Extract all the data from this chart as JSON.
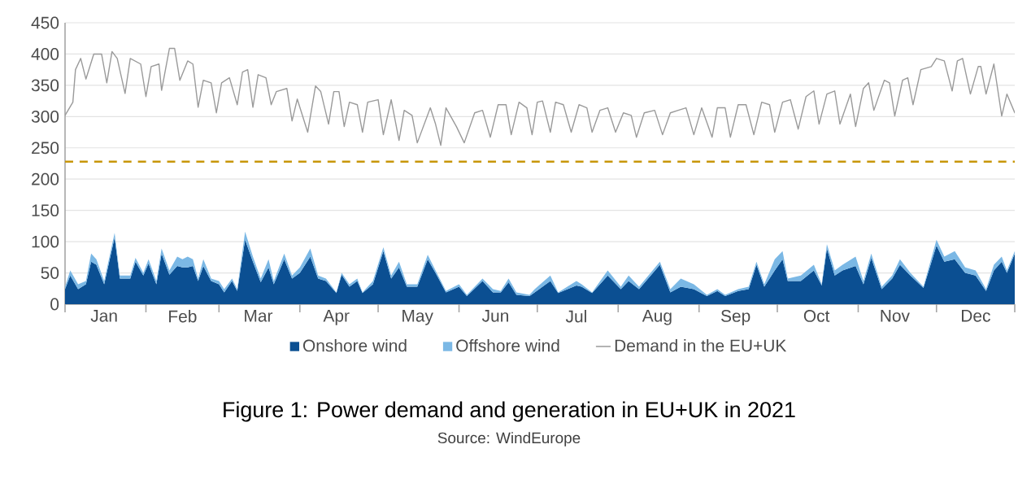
{
  "chart_data": {
    "type": "area",
    "stacked": true,
    "title": "Figure 1: Power demand and generation in EU+UK in 2021",
    "annotations": [
      "Source: WindEurope"
    ],
    "xlim": [
      "2021-01-01",
      "2021-12-31"
    ],
    "xticks": [
      {
        "value": "2021-01-16",
        "label": "Jan"
      },
      {
        "value": "2021-02-15",
        "label": "Feb"
      },
      {
        "value": "2021-03-16",
        "label": "Mar"
      },
      {
        "value": "2021-04-15",
        "label": "Apr"
      },
      {
        "value": "2021-05-16",
        "label": "May"
      },
      {
        "value": "2021-06-15",
        "label": "Jun"
      },
      {
        "value": "2021-07-16",
        "label": "Jul"
      },
      {
        "value": "2021-08-16",
        "label": "Aug"
      },
      {
        "value": "2021-09-15",
        "label": "Sep"
      },
      {
        "value": "2021-10-16",
        "label": "Oct"
      },
      {
        "value": "2021-11-15",
        "label": "Nov"
      },
      {
        "value": "2021-12-16",
        "label": "Dec"
      },
      {
        "value": "2021-01-01",
        "label": null
      },
      {
        "value": "2021-02-01",
        "label": null
      },
      {
        "value": "2021-03-01",
        "label": null
      },
      {
        "value": "2021-04-01",
        "label": null
      },
      {
        "value": "2021-05-01",
        "label": null
      },
      {
        "value": "2021-06-01",
        "label": null
      },
      {
        "value": "2021-07-01",
        "label": null
      },
      {
        "value": "2021-08-01",
        "label": null
      },
      {
        "value": "2021-09-01",
        "label": null
      },
      {
        "value": "2021-10-01",
        "label": null
      },
      {
        "value": "2021-11-01",
        "label": null
      },
      {
        "value": "2021-12-01",
        "label": null
      },
      {
        "value": "2021-12-31",
        "label": null
      }
    ],
    "ylim": [
      0,
      450
    ],
    "yticks": [
      0,
      50,
      100,
      150,
      200,
      250,
      300,
      350,
      400,
      450
    ],
    "grid": "y",
    "legend": "bottom",
    "ref_lines": [
      {
        "axis": "y",
        "value": 228,
        "color": "#c8960a",
        "line_style": "dashed"
      }
    ],
    "series": [
      {
        "name": "Onshore wind",
        "color": "#0b4f92",
        "x": [
          "2021-01-01",
          "2021-01-03",
          "2021-01-06",
          "2021-01-09",
          "2021-01-11",
          "2021-01-13",
          "2021-01-16",
          "2021-01-20",
          "2021-01-22",
          "2021-01-26",
          "2021-01-28",
          "2021-01-31",
          "2021-02-02",
          "2021-02-05",
          "2021-02-07",
          "2021-02-10",
          "2021-02-13",
          "2021-02-15",
          "2021-02-17",
          "2021-02-19",
          "2021-02-21",
          "2021-02-23",
          "2021-02-26",
          "2021-03-01",
          "2021-03-03",
          "2021-03-06",
          "2021-03-08",
          "2021-03-11",
          "2021-03-14",
          "2021-03-17",
          "2021-03-20",
          "2021-03-22",
          "2021-03-26",
          "2021-03-29",
          "2021-04-01",
          "2021-04-05",
          "2021-04-08",
          "2021-04-11",
          "2021-04-15",
          "2021-04-17",
          "2021-04-20",
          "2021-04-23",
          "2021-04-25",
          "2021-04-29",
          "2021-05-03",
          "2021-05-06",
          "2021-05-09",
          "2021-05-12",
          "2021-05-16",
          "2021-05-20",
          "2021-05-23",
          "2021-05-27",
          "2021-06-01",
          "2021-06-04",
          "2021-06-10",
          "2021-06-14",
          "2021-06-17",
          "2021-06-20",
          "2021-06-23",
          "2021-06-28",
          "2021-06-30",
          "2021-07-06",
          "2021-07-09",
          "2021-07-16",
          "2021-07-18",
          "2021-07-22",
          "2021-07-28",
          "2021-08-02",
          "2021-08-05",
          "2021-08-09",
          "2021-08-17",
          "2021-08-21",
          "2021-08-25",
          "2021-08-30",
          "2021-09-04",
          "2021-09-08",
          "2021-09-11",
          "2021-09-16",
          "2021-09-20",
          "2021-09-23",
          "2021-09-26",
          "2021-09-30",
          "2021-10-03",
          "2021-10-05",
          "2021-10-10",
          "2021-10-15",
          "2021-10-18",
          "2021-10-20",
          "2021-10-23",
          "2021-10-26",
          "2021-10-31",
          "2021-11-03",
          "2021-11-06",
          "2021-11-10",
          "2021-11-14",
          "2021-11-17",
          "2021-11-21",
          "2021-11-26",
          "2021-12-01",
          "2021-12-04",
          "2021-12-08",
          "2021-12-12",
          "2021-12-16",
          "2021-12-20",
          "2021-12-23",
          "2021-12-26",
          "2021-12-28",
          "2021-12-31"
        ],
        "values": [
          24,
          46,
          24,
          32,
          68,
          63,
          32,
          107,
          41,
          41,
          68,
          46,
          65,
          32,
          81,
          47,
          61,
          59,
          59,
          61,
          37,
          61,
          37,
          32,
          19,
          37,
          21,
          103,
          68,
          35,
          59,
          32,
          72,
          41,
          50,
          76,
          41,
          37,
          18,
          47,
          28,
          37,
          18,
          32,
          85,
          41,
          59,
          28,
          28,
          72,
          50,
          19,
          28,
          13,
          37,
          19,
          19,
          35,
          15,
          13,
          19,
          37,
          18,
          30,
          28,
          18,
          46,
          24,
          37,
          24,
          63,
          19,
          28,
          24,
          13,
          21,
          13,
          21,
          24,
          63,
          28,
          54,
          72,
          37,
          37,
          54,
          30,
          89,
          46,
          54,
          61,
          32,
          74,
          24,
          41,
          63,
          46,
          26,
          94,
          68,
          72,
          50,
          46,
          21,
          54,
          68,
          50,
          81
        ]
      },
      {
        "name": "Offshore wind",
        "color": "#7bb8e5",
        "x": [
          "2021-01-01",
          "2021-01-03",
          "2021-01-06",
          "2021-01-09",
          "2021-01-11",
          "2021-01-13",
          "2021-01-16",
          "2021-01-20",
          "2021-01-22",
          "2021-01-26",
          "2021-01-28",
          "2021-01-31",
          "2021-02-02",
          "2021-02-05",
          "2021-02-07",
          "2021-02-10",
          "2021-02-13",
          "2021-02-15",
          "2021-02-17",
          "2021-02-19",
          "2021-02-21",
          "2021-02-23",
          "2021-02-26",
          "2021-03-01",
          "2021-03-03",
          "2021-03-06",
          "2021-03-08",
          "2021-03-11",
          "2021-03-14",
          "2021-03-17",
          "2021-03-20",
          "2021-03-22",
          "2021-03-26",
          "2021-03-29",
          "2021-04-01",
          "2021-04-05",
          "2021-04-08",
          "2021-04-11",
          "2021-04-15",
          "2021-04-17",
          "2021-04-20",
          "2021-04-23",
          "2021-04-25",
          "2021-04-29",
          "2021-05-03",
          "2021-05-06",
          "2021-05-09",
          "2021-05-12",
          "2021-05-16",
          "2021-05-20",
          "2021-05-23",
          "2021-05-27",
          "2021-06-01",
          "2021-06-04",
          "2021-06-10",
          "2021-06-14",
          "2021-06-17",
          "2021-06-20",
          "2021-06-23",
          "2021-06-28",
          "2021-06-30",
          "2021-07-06",
          "2021-07-09",
          "2021-07-16",
          "2021-07-18",
          "2021-07-22",
          "2021-07-28",
          "2021-08-02",
          "2021-08-05",
          "2021-08-09",
          "2021-08-17",
          "2021-08-21",
          "2021-08-25",
          "2021-08-30",
          "2021-09-04",
          "2021-09-08",
          "2021-09-11",
          "2021-09-16",
          "2021-09-20",
          "2021-09-23",
          "2021-09-26",
          "2021-09-30",
          "2021-10-03",
          "2021-10-05",
          "2021-10-10",
          "2021-10-15",
          "2021-10-18",
          "2021-10-20",
          "2021-10-23",
          "2021-10-26",
          "2021-10-31",
          "2021-11-03",
          "2021-11-06",
          "2021-11-10",
          "2021-11-14",
          "2021-11-17",
          "2021-11-21",
          "2021-11-26",
          "2021-12-01",
          "2021-12-04",
          "2021-12-08",
          "2021-12-12",
          "2021-12-16",
          "2021-12-20",
          "2021-12-23",
          "2021-12-26",
          "2021-12-28",
          "2021-12-31"
        ],
        "values": [
          4,
          8,
          8,
          5,
          13,
          9,
          5,
          7,
          5,
          5,
          6,
          4,
          7,
          5,
          8,
          7,
          15,
          13,
          17,
          11,
          4,
          11,
          4,
          5,
          5,
          4,
          3,
          13,
          8,
          6,
          13,
          5,
          9,
          5,
          9,
          13,
          5,
          4,
          1,
          3,
          4,
          4,
          1,
          5,
          6,
          5,
          9,
          4,
          4,
          7,
          4,
          2,
          4,
          2,
          4,
          5,
          2,
          6,
          4,
          2,
          5,
          9,
          1,
          7,
          4,
          1,
          8,
          4,
          9,
          4,
          5,
          5,
          13,
          8,
          2,
          3,
          2,
          3,
          4,
          5,
          4,
          18,
          13,
          4,
          9,
          9,
          2,
          7,
          8,
          9,
          15,
          5,
          7,
          4,
          5,
          9,
          4,
          2,
          9,
          8,
          13,
          9,
          8,
          3,
          9,
          8,
          4,
          4
        ]
      },
      {
        "name": "Demand in the EU+UK",
        "type": "line",
        "color": "#9a9a9a",
        "x": [
          "2021-01-01",
          "2021-01-04",
          "2021-01-05",
          "2021-01-07",
          "2021-01-09",
          "2021-01-12",
          "2021-01-15",
          "2021-01-17",
          "2021-01-19",
          "2021-01-21",
          "2021-01-24",
          "2021-01-26",
          "2021-01-30",
          "2021-02-01",
          "2021-02-03",
          "2021-02-06",
          "2021-02-07",
          "2021-02-10",
          "2021-02-12",
          "2021-02-14",
          "2021-02-17",
          "2021-02-19",
          "2021-02-21",
          "2021-02-23",
          "2021-02-26",
          "2021-02-28",
          "2021-03-02",
          "2021-03-05",
          "2021-03-08",
          "2021-03-10",
          "2021-03-12",
          "2021-03-14",
          "2021-03-16",
          "2021-03-19",
          "2021-03-21",
          "2021-03-23",
          "2021-03-27",
          "2021-03-29",
          "2021-03-31",
          "2021-04-04",
          "2021-04-07",
          "2021-04-09",
          "2021-04-12",
          "2021-04-14",
          "2021-04-16",
          "2021-04-18",
          "2021-04-20",
          "2021-04-23",
          "2021-04-25",
          "2021-04-27",
          "2021-05-01",
          "2021-05-03",
          "2021-05-06",
          "2021-05-09",
          "2021-05-11",
          "2021-05-14",
          "2021-05-16",
          "2021-05-21",
          "2021-05-23",
          "2021-05-25",
          "2021-05-27",
          "2021-05-31",
          "2021-06-03",
          "2021-06-07",
          "2021-06-10",
          "2021-06-13",
          "2021-06-16",
          "2021-06-19",
          "2021-06-21",
          "2021-06-24",
          "2021-06-27",
          "2021-06-29",
          "2021-07-01",
          "2021-07-03",
          "2021-07-06",
          "2021-07-08",
          "2021-07-11",
          "2021-07-14",
          "2021-07-17",
          "2021-07-20",
          "2021-07-22",
          "2021-07-25",
          "2021-07-28",
          "2021-07-31",
          "2021-08-03",
          "2021-08-06",
          "2021-08-08",
          "2021-08-11",
          "2021-08-15",
          "2021-08-18",
          "2021-08-21",
          "2021-08-24",
          "2021-08-27",
          "2021-08-30",
          "2021-09-02",
          "2021-09-06",
          "2021-09-08",
          "2021-09-11",
          "2021-09-13",
          "2021-09-16",
          "2021-09-19",
          "2021-09-22",
          "2021-09-25",
          "2021-09-28",
          "2021-09-30",
          "2021-10-03",
          "2021-10-06",
          "2021-10-09",
          "2021-10-12",
          "2021-10-15",
          "2021-10-17",
          "2021-10-20",
          "2021-10-23",
          "2021-10-25",
          "2021-10-29",
          "2021-10-31",
          "2021-11-03",
          "2021-11-05",
          "2021-11-07",
          "2021-11-11",
          "2021-11-13",
          "2021-11-15",
          "2021-11-18",
          "2021-11-20",
          "2021-11-22",
          "2021-11-25",
          "2021-11-29",
          "2021-12-01",
          "2021-12-04",
          "2021-12-07",
          "2021-12-09",
          "2021-12-11",
          "2021-12-14",
          "2021-12-17",
          "2021-12-18",
          "2021-12-20",
          "2021-12-23",
          "2021-12-26",
          "2021-12-28",
          "2021-12-31"
        ],
        "values": [
          302,
          323,
          375,
          393,
          360,
          400,
          400,
          354,
          404,
          393,
          337,
          393,
          384,
          332,
          380,
          384,
          342,
          409,
          409,
          358,
          389,
          384,
          315,
          358,
          354,
          306,
          354,
          362,
          319,
          371,
          375,
          315,
          367,
          362,
          319,
          340,
          345,
          293,
          328,
          275,
          349,
          340,
          288,
          340,
          340,
          284,
          323,
          319,
          275,
          323,
          327,
          271,
          327,
          262,
          310,
          302,
          258,
          314,
          288,
          254,
          314,
          284,
          258,
          306,
          310,
          267,
          319,
          319,
          271,
          323,
          314,
          271,
          323,
          325,
          275,
          323,
          319,
          275,
          319,
          314,
          275,
          310,
          314,
          275,
          306,
          302,
          267,
          306,
          310,
          271,
          306,
          310,
          314,
          271,
          314,
          267,
          314,
          314,
          267,
          319,
          319,
          271,
          323,
          319,
          275,
          323,
          327,
          280,
          332,
          341,
          288,
          336,
          341,
          288,
          336,
          284,
          345,
          354,
          310,
          358,
          354,
          301,
          358,
          362,
          319,
          375,
          380,
          393,
          389,
          341,
          389,
          393,
          336,
          380,
          380,
          336,
          384,
          301,
          336,
          306
        ]
      }
    ]
  }
}
